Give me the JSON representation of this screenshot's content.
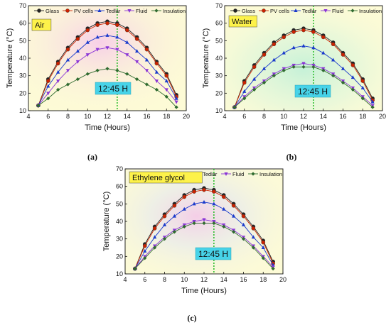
{
  "series_styles": [
    {
      "name": "Glass",
      "color": "#222222",
      "marker": "circle"
    },
    {
      "name": "PV cells",
      "color": "#cc2200",
      "marker": "circle"
    },
    {
      "name": "Tedlar",
      "color": "#1a3acc",
      "marker": "triangle-up"
    },
    {
      "name": "Fluid",
      "color": "#8a35d6",
      "marker": "triangle-down"
    },
    {
      "name": "Insulation",
      "color": "#2f6b2f",
      "marker": "diamond"
    }
  ],
  "colors": {
    "plot_bg": "#fdfbd6",
    "medium_label_bg": "#fdf24a",
    "time_label_bg": "#47d3e8",
    "vline": "#2fbf2f"
  },
  "chart_data": [
    {
      "type": "line",
      "caption": "(a)",
      "medium_label": "Air",
      "time_label": "12:45 H",
      "vline_x": 13,
      "xlabel": "Time (Hours)",
      "ylabel": "Temperature (°C)",
      "xlim": [
        4,
        20
      ],
      "ylim": [
        10,
        70
      ],
      "xticks": [
        4,
        6,
        8,
        10,
        12,
        14,
        16,
        18,
        20
      ],
      "yticks": [
        10,
        20,
        30,
        40,
        50,
        60,
        70
      ],
      "x": [
        5,
        6,
        7,
        8,
        9,
        10,
        11,
        12,
        13,
        14,
        15,
        16,
        17,
        18,
        19
      ],
      "series": [
        {
          "name": "Glass",
          "values": [
            13,
            28,
            38,
            46,
            52,
            57,
            60,
            61,
            60,
            57,
            52,
            46,
            38,
            31,
            19
          ]
        },
        {
          "name": "PV cells",
          "values": [
            13,
            27,
            37,
            45,
            51,
            56,
            59,
            60,
            59,
            56,
            51,
            45,
            37,
            30,
            18
          ]
        },
        {
          "name": "Tedlar",
          "values": [
            13,
            24,
            32,
            39,
            44,
            49,
            52,
            53,
            52,
            49,
            44,
            39,
            32,
            27,
            17
          ]
        },
        {
          "name": "Fluid",
          "values": [
            13,
            20,
            27,
            33,
            38,
            42,
            45,
            46,
            45,
            42,
            38,
            33,
            27,
            22,
            15
          ]
        },
        {
          "name": "Insulation",
          "values": [
            13,
            17,
            22,
            25,
            28,
            31,
            33,
            34,
            33,
            31,
            28,
            25,
            22,
            18,
            12
          ]
        }
      ]
    },
    {
      "type": "line",
      "caption": "(b)",
      "medium_label": "Water",
      "time_label": "12:45 H",
      "vline_x": 13,
      "xlabel": "Time (Hours)",
      "ylabel": "Temperature (°C)",
      "xlim": [
        4,
        20
      ],
      "ylim": [
        10,
        70
      ],
      "xticks": [
        4,
        6,
        8,
        10,
        12,
        14,
        16,
        18,
        20
      ],
      "yticks": [
        10,
        20,
        30,
        40,
        50,
        60,
        70
      ],
      "x": [
        5,
        6,
        7,
        8,
        9,
        10,
        11,
        12,
        13,
        14,
        15,
        16,
        17,
        18,
        19
      ],
      "series": [
        {
          "name": "Glass",
          "values": [
            12,
            27,
            36,
            43,
            49,
            53,
            56,
            57,
            56,
            53,
            49,
            43,
            37,
            28,
            17
          ]
        },
        {
          "name": "PV cells",
          "values": [
            12,
            26,
            35,
            42,
            48,
            52,
            55,
            56,
            55,
            52,
            48,
            42,
            36,
            27,
            16
          ]
        },
        {
          "name": "Tedlar",
          "values": [
            12,
            21,
            28,
            34,
            39,
            43,
            46,
            47,
            46,
            43,
            39,
            34,
            29,
            23,
            15
          ]
        },
        {
          "name": "Fluid",
          "values": [
            12,
            18,
            23,
            27,
            31,
            34,
            36,
            37,
            36,
            34,
            31,
            27,
            23,
            18,
            13
          ]
        },
        {
          "name": "Insulation",
          "values": [
            12,
            17,
            22,
            26,
            30,
            33,
            35,
            35,
            35,
            33,
            30,
            26,
            22,
            17,
            12
          ]
        }
      ]
    },
    {
      "type": "line",
      "caption": "(c)",
      "medium_label": "Ethylene glycol",
      "time_label": "12:45 H",
      "vline_x": 13,
      "xlabel": "Time (Hours)",
      "ylabel": "Temperature (°C)",
      "xlim": [
        4,
        20
      ],
      "ylim": [
        10,
        70
      ],
      "xticks": [
        4,
        6,
        8,
        10,
        12,
        14,
        16,
        18,
        20
      ],
      "yticks": [
        10,
        20,
        30,
        40,
        50,
        60,
        70
      ],
      "x": [
        5,
        6,
        7,
        8,
        9,
        10,
        11,
        12,
        13,
        14,
        15,
        16,
        17,
        18,
        19
      ],
      "series": [
        {
          "name": "Glass",
          "values": [
            13,
            27,
            37,
            44,
            50,
            55,
            58,
            59,
            58,
            55,
            50,
            44,
            37,
            29,
            17
          ]
        },
        {
          "name": "PV cells",
          "values": [
            13,
            26,
            36,
            43,
            49,
            54,
            57,
            58,
            57,
            54,
            49,
            43,
            36,
            28,
            16
          ]
        },
        {
          "name": "Tedlar",
          "values": [
            13,
            23,
            31,
            38,
            43,
            47,
            50,
            51,
            50,
            47,
            43,
            38,
            31,
            25,
            15
          ]
        },
        {
          "name": "Fluid",
          "values": [
            13,
            20,
            26,
            31,
            35,
            38,
            40,
            41,
            40,
            38,
            35,
            31,
            26,
            20,
            14
          ]
        },
        {
          "name": "Insulation",
          "values": [
            13,
            19,
            25,
            30,
            34,
            37,
            39,
            39,
            39,
            37,
            34,
            30,
            25,
            19,
            13
          ]
        }
      ]
    }
  ]
}
